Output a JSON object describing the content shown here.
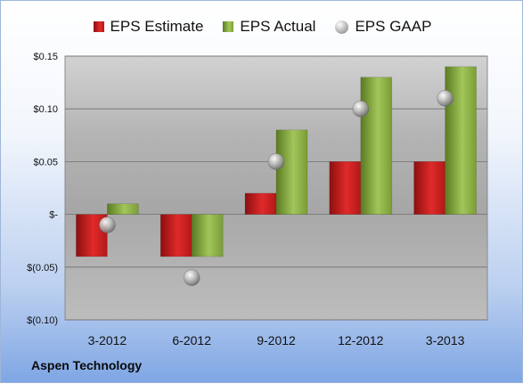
{
  "legend": {
    "estimate": "EPS Estimate",
    "actual": "EPS Actual",
    "gaap": "EPS GAAP"
  },
  "company": "Aspen Technology",
  "colors": {
    "estimate": "#d42020",
    "actual": "#8db54a",
    "gaap": "#a8a8a8"
  },
  "chart_data": {
    "type": "bar",
    "categories": [
      "3-2012",
      "6-2012",
      "9-2012",
      "12-2012",
      "3-2013"
    ],
    "series": [
      {
        "name": "EPS Estimate",
        "values": [
          -0.04,
          -0.04,
          0.02,
          0.05,
          0.05
        ]
      },
      {
        "name": "EPS Actual",
        "values": [
          0.01,
          -0.04,
          0.08,
          0.13,
          0.14
        ]
      },
      {
        "name": "EPS GAAP",
        "values": [
          -0.01,
          -0.06,
          0.05,
          0.1,
          0.11
        ],
        "marker": "circle"
      }
    ],
    "ylim": [
      -0.1,
      0.15
    ],
    "yticks": [
      0.15,
      0.1,
      0.05,
      0,
      -0.05,
      -0.1
    ],
    "ytick_labels": [
      "$0.15",
      "$0.10",
      "$0.05",
      "$-",
      "$(0.05)",
      "$(0.10)"
    ],
    "grid": true,
    "legend_position": "top"
  }
}
